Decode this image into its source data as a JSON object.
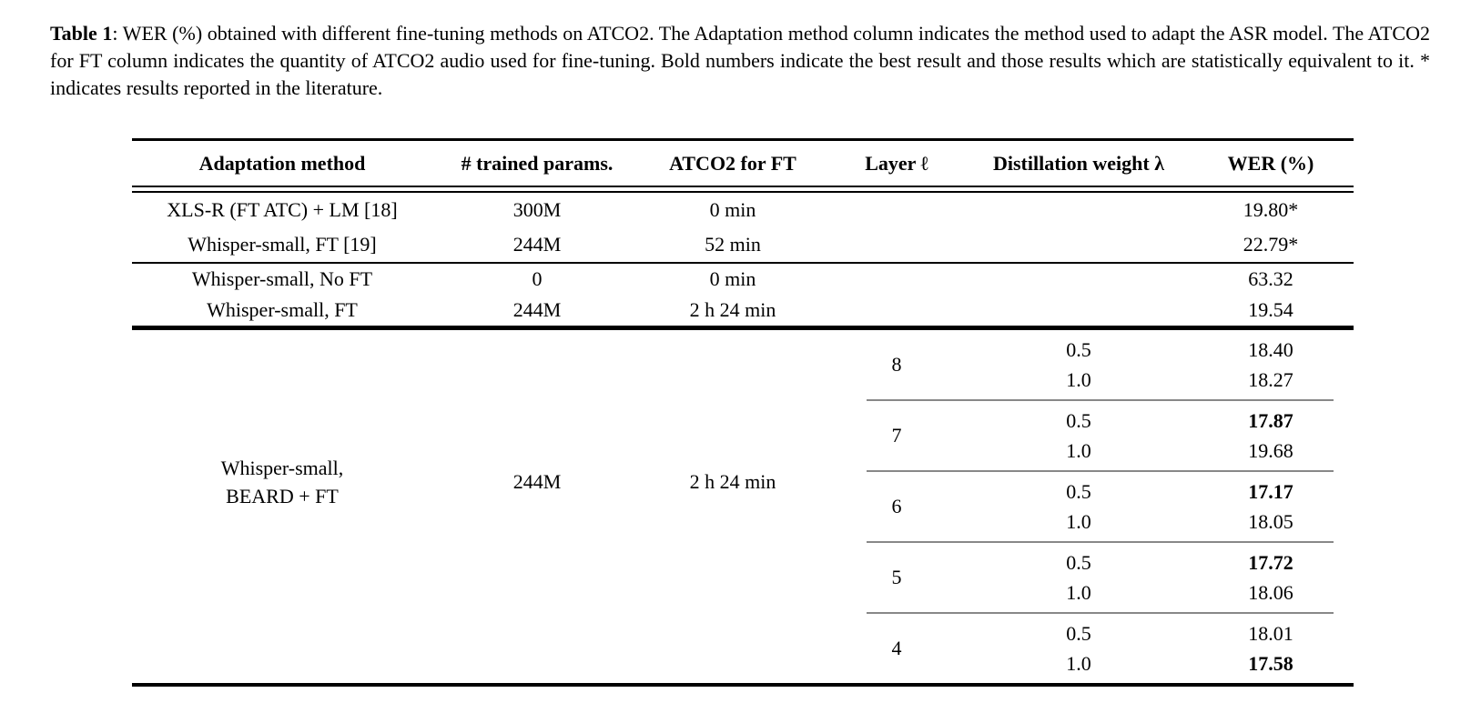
{
  "caption": {
    "label": "Table 1",
    "text": ": WER (%) obtained with different fine-tuning methods on ATCO2. The Adaptation method column indicates the method used to adapt the ASR model. The ATCO2 for FT column indicates the quantity of ATCO2 audio used for fine-tuning. Bold numbers indicate the best result and those results which are statistically equivalent to it. * indicates results reported in the literature."
  },
  "table": {
    "headers": [
      "Adaptation method",
      "# trained params.",
      "ATCO2 for FT",
      "Layer ℓ",
      "Distillation weight λ",
      "WER (%)"
    ],
    "section1": [
      {
        "method": "XLS-R (FT ATC) + LM [18]",
        "params": "300M",
        "atco2": "0 min",
        "wer": "19.80*",
        "bold": false
      },
      {
        "method": "Whisper-small, FT [19]",
        "params": "244M",
        "atco2": "52 min",
        "wer": "22.79*",
        "bold": false
      }
    ],
    "section2": [
      {
        "method": "Whisper-small, No FT",
        "params": "0",
        "atco2": "0 min",
        "wer": "63.32",
        "bold": false
      },
      {
        "method": "Whisper-small, FT",
        "params": "244M",
        "atco2": "2 h 24 min",
        "wer": "19.54",
        "bold": false
      }
    ],
    "section3": {
      "method_line1": "Whisper-small,",
      "method_line2": "BEARD + FT",
      "params": "244M",
      "atco2": "2 h 24 min",
      "groups": [
        {
          "layer": "8",
          "rows": [
            {
              "weight": "0.5",
              "wer": "18.40",
              "bold": false
            },
            {
              "weight": "1.0",
              "wer": "18.27",
              "bold": false
            }
          ]
        },
        {
          "layer": "7",
          "rows": [
            {
              "weight": "0.5",
              "wer": "17.87",
              "bold": true
            },
            {
              "weight": "1.0",
              "wer": "19.68",
              "bold": false
            }
          ]
        },
        {
          "layer": "6",
          "rows": [
            {
              "weight": "0.5",
              "wer": "17.17",
              "bold": true
            },
            {
              "weight": "1.0",
              "wer": "18.05",
              "bold": false
            }
          ]
        },
        {
          "layer": "5",
          "rows": [
            {
              "weight": "0.5",
              "wer": "17.72",
              "bold": true
            },
            {
              "weight": "1.0",
              "wer": "18.06",
              "bold": false
            }
          ]
        },
        {
          "layer": "4",
          "rows": [
            {
              "weight": "0.5",
              "wer": "18.01",
              "bold": false
            },
            {
              "weight": "1.0",
              "wer": "17.58",
              "bold": true
            }
          ]
        }
      ]
    },
    "colors": {
      "text": "#000000",
      "background": "#ffffff",
      "rule_black": "#000000",
      "rule_gray": "#888888"
    }
  }
}
